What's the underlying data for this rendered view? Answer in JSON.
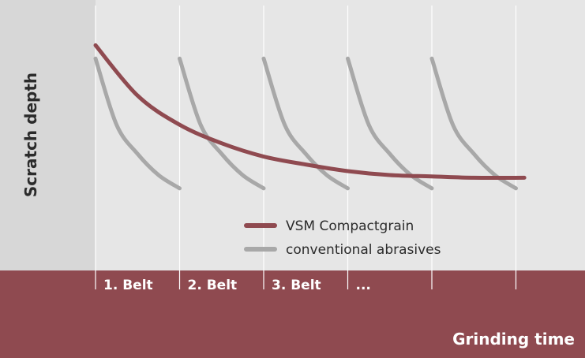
{
  "chart_data": {
    "type": "line",
    "xlabel": "Grinding time",
    "ylabel": "Scratch depth",
    "x_tick_labels": [
      "1. Belt",
      "2. Belt",
      "3. Belt",
      "..."
    ],
    "x_gridlines": 6,
    "xlim": [
      0,
      5.1
    ],
    "ylim": [
      0,
      1
    ],
    "grid": "vertical",
    "legend_placement": "bottom-center",
    "legend": {
      "compactgrain": "VSM Compactgrain",
      "conventional": "conventional abrasives"
    },
    "series": [
      {
        "key": "compactgrain",
        "color": "#8f4a50",
        "points": [
          [
            0.0,
            0.85
          ],
          [
            0.5,
            0.66
          ],
          [
            1.0,
            0.55
          ],
          [
            1.5,
            0.48
          ],
          [
            2.0,
            0.43
          ],
          [
            2.5,
            0.4
          ],
          [
            3.0,
            0.375
          ],
          [
            3.5,
            0.36
          ],
          [
            4.0,
            0.355
          ],
          [
            4.5,
            0.35
          ],
          [
            5.1,
            0.35
          ]
        ]
      },
      {
        "key": "conventional",
        "color": "#a8a8a8",
        "segments": [
          [
            [
              0.0,
              0.8
            ],
            [
              0.25,
              0.55
            ],
            [
              0.5,
              0.44
            ],
            [
              0.75,
              0.36
            ],
            [
              1.0,
              0.31
            ]
          ],
          [
            [
              1.0,
              0.8
            ],
            [
              1.25,
              0.55
            ],
            [
              1.5,
              0.44
            ],
            [
              1.75,
              0.36
            ],
            [
              2.0,
              0.31
            ]
          ],
          [
            [
              2.0,
              0.8
            ],
            [
              2.25,
              0.55
            ],
            [
              2.5,
              0.44
            ],
            [
              2.75,
              0.36
            ],
            [
              3.0,
              0.31
            ]
          ],
          [
            [
              3.0,
              0.8
            ],
            [
              3.25,
              0.55
            ],
            [
              3.5,
              0.44
            ],
            [
              3.75,
              0.36
            ],
            [
              4.0,
              0.31
            ]
          ],
          [
            [
              4.0,
              0.8
            ],
            [
              4.25,
              0.55
            ],
            [
              4.5,
              0.44
            ],
            [
              4.75,
              0.36
            ],
            [
              5.0,
              0.31
            ]
          ]
        ]
      }
    ]
  },
  "colors": {
    "plot_background": "#e6e6e6",
    "axis_band": "#d7d7d7",
    "bottom_band": "#8f4a50",
    "gridline": "#ffffff"
  }
}
